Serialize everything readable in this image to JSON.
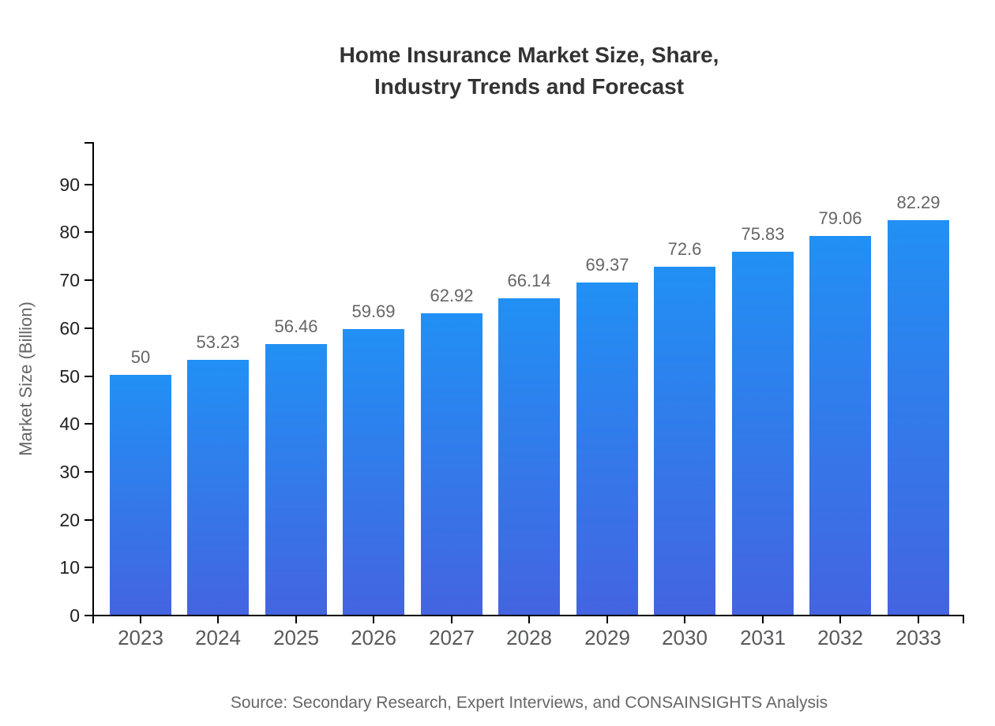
{
  "chart_data": {
    "type": "bar",
    "title_lines": [
      "Home Insurance Market Size, Share,",
      "Industry Trends and Forecast"
    ],
    "categories": [
      "2023",
      "2024",
      "2025",
      "2026",
      "2027",
      "2028",
      "2029",
      "2030",
      "2031",
      "2032",
      "2033"
    ],
    "values": [
      50,
      53.23,
      56.46,
      59.69,
      62.92,
      66.14,
      69.37,
      72.6,
      75.83,
      79.06,
      82.29
    ],
    "value_labels": [
      "50",
      "53.23",
      "56.46",
      "59.69",
      "62.92",
      "66.14",
      "69.37",
      "72.6",
      "75.83",
      "79.06",
      "82.29"
    ],
    "xlabel": "",
    "ylabel": "Market Size (Billion)",
    "ylim": [
      0,
      100
    ],
    "yticks": [
      0,
      10,
      20,
      30,
      40,
      50,
      60,
      70,
      80,
      90
    ],
    "grid": false,
    "legend": false,
    "source": "Source: Secondary Research, Expert Interviews, and CONSAINSIGHTS Analysis",
    "colors": {
      "bar_gradient_top": "#2190f4",
      "bar_gradient_bottom": "#4464e1",
      "axis": "#000000",
      "title_text": "#333333",
      "tick_text": "#222222",
      "category_text": "#58595b",
      "value_label_text": "#666666",
      "axis_label_text": "#666666",
      "source_text": "#666666",
      "background": "#ffffff"
    }
  }
}
